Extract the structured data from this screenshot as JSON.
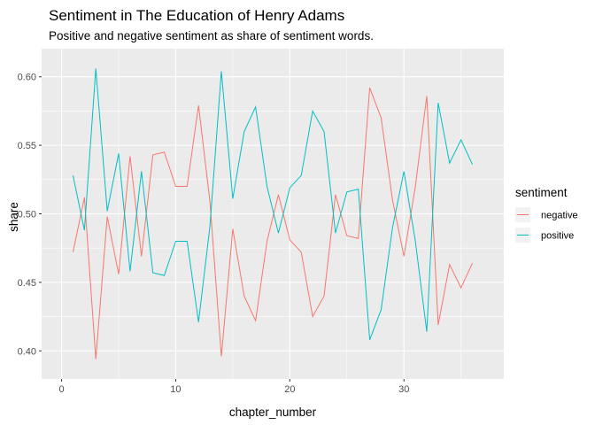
{
  "chart_data": {
    "type": "line",
    "title": "Sentiment in The Education of Henry Adams",
    "subtitle": "Positive and negative sentiment as share of sentiment words.",
    "xlabel": "chapter_number",
    "ylabel": "share",
    "xlim": [
      -1.75,
      38.75
    ],
    "ylim": [
      0.3795,
      0.6205
    ],
    "x_ticks": [
      0,
      10,
      20,
      30
    ],
    "y_ticks": [
      0.4,
      0.45,
      0.5,
      0.55,
      0.6
    ],
    "y_tick_labels": [
      "0.40",
      "0.45",
      "0.50",
      "0.55",
      "0.60"
    ],
    "x_tick_labels": [
      "0",
      "10",
      "20",
      "30"
    ],
    "grid": true,
    "legend_position": "right",
    "legend_title": "sentiment",
    "x": [
      1,
      2,
      3,
      4,
      5,
      6,
      7,
      8,
      9,
      10,
      11,
      12,
      13,
      14,
      15,
      16,
      17,
      18,
      19,
      20,
      21,
      22,
      23,
      24,
      25,
      26,
      27,
      28,
      29,
      30,
      31,
      32,
      33,
      34,
      35,
      36
    ],
    "series": [
      {
        "name": "negative",
        "color": "#F8766D",
        "values": [
          0.472,
          0.512,
          0.394,
          0.498,
          0.456,
          0.542,
          0.469,
          0.543,
          0.545,
          0.52,
          0.52,
          0.579,
          0.509,
          0.396,
          0.489,
          0.44,
          0.422,
          0.48,
          0.514,
          0.481,
          0.472,
          0.425,
          0.44,
          0.514,
          0.484,
          0.482,
          0.592,
          0.57,
          0.51,
          0.469,
          0.52,
          0.586,
          0.419,
          0.463,
          0.446,
          0.464
        ]
      },
      {
        "name": "positive",
        "color": "#00BFC4",
        "values": [
          0.528,
          0.488,
          0.606,
          0.502,
          0.544,
          0.458,
          0.531,
          0.457,
          0.455,
          0.48,
          0.48,
          0.421,
          0.491,
          0.604,
          0.511,
          0.56,
          0.578,
          0.52,
          0.486,
          0.519,
          0.528,
          0.575,
          0.56,
          0.486,
          0.516,
          0.518,
          0.408,
          0.43,
          0.49,
          0.531,
          0.48,
          0.414,
          0.581,
          0.537,
          0.554,
          0.536
        ]
      }
    ]
  }
}
